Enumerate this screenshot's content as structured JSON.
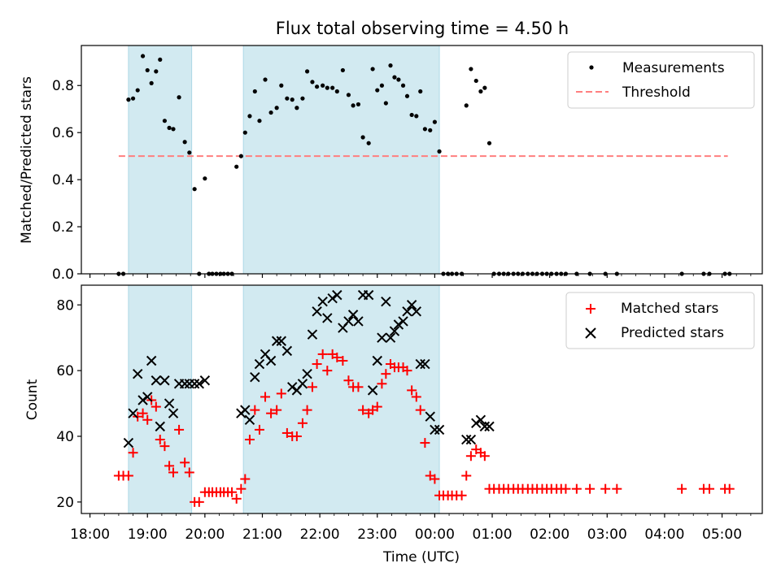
{
  "title": "Flux total observing time = 4.50 h",
  "xlabel": "Time (UTC)",
  "x_ticks": [
    "18:00",
    "19:00",
    "20:00",
    "21:00",
    "22:00",
    "23:00",
    "00:00",
    "01:00",
    "02:00",
    "03:00",
    "04:00",
    "05:00"
  ],
  "colors": {
    "shade": "#add8e6",
    "threshold": "#ff7f7f",
    "matched": "#ff0000",
    "predicted": "#000000",
    "measurement": "#000000"
  },
  "chart_data": [
    {
      "type": "scatter",
      "panel": "top",
      "ylabel": "Matched/Predicted stars",
      "xlim": [
        -0.15,
        11.7
      ],
      "ylim": [
        0,
        0.97
      ],
      "y_ticks": [
        "0.0",
        "0.2",
        "0.4",
        "0.6",
        "0.8"
      ],
      "x_unit": "hours since 18:00 UTC",
      "shaded_intervals": [
        [
          0.67,
          1.77
        ],
        [
          2.67,
          6.08
        ]
      ],
      "legend": [
        "Measurements",
        "Threshold"
      ],
      "legend_position": "top-right",
      "threshold": {
        "name": "Threshold",
        "y": 0.5,
        "x_range": [
          0.5,
          11.1
        ]
      },
      "series": [
        {
          "name": "Measurements",
          "x": [
            0.5,
            0.58,
            0.67,
            0.75,
            0.83,
            0.92,
            1.0,
            1.07,
            1.15,
            1.22,
            1.3,
            1.38,
            1.45,
            1.55,
            1.65,
            1.73,
            1.82,
            1.9,
            2.0,
            2.07,
            2.13,
            2.2,
            2.27,
            2.33,
            2.4,
            2.47,
            2.55,
            2.63,
            2.7,
            2.78,
            2.87,
            2.95,
            3.05,
            3.15,
            3.25,
            3.33,
            3.43,
            3.52,
            3.6,
            3.7,
            3.78,
            3.87,
            3.95,
            4.05,
            4.13,
            4.22,
            4.3,
            4.4,
            4.5,
            4.58,
            4.67,
            4.75,
            4.85,
            4.92,
            5.0,
            5.08,
            5.15,
            5.23,
            5.3,
            5.37,
            5.45,
            5.52,
            5.6,
            5.68,
            5.75,
            5.83,
            5.92,
            6.0,
            6.08,
            6.15,
            6.23,
            6.3,
            6.38,
            6.47,
            6.55,
            6.63,
            6.72,
            6.8,
            6.87,
            6.95,
            7.03,
            7.12,
            7.2,
            7.28,
            7.37,
            7.45,
            7.53,
            7.62,
            7.7,
            7.78,
            7.87,
            7.95,
            8.03,
            8.12,
            8.2,
            8.28,
            8.47,
            8.7,
            8.97,
            9.17,
            10.3,
            10.68,
            10.78,
            11.05,
            11.13
          ],
          "y": [
            0.0,
            0.0,
            0.74,
            0.745,
            0.78,
            0.925,
            0.865,
            0.81,
            0.86,
            0.91,
            0.65,
            0.62,
            0.615,
            0.75,
            0.56,
            0.515,
            0.36,
            0.0,
            0.405,
            0.0,
            0.0,
            0.0,
            0.0,
            0.0,
            0.0,
            0.0,
            0.455,
            0.5,
            0.6,
            0.67,
            0.775,
            0.65,
            0.825,
            0.685,
            0.705,
            0.8,
            0.745,
            0.74,
            0.705,
            0.745,
            0.86,
            0.815,
            0.795,
            0.8,
            0.79,
            0.79,
            0.775,
            0.865,
            0.76,
            0.715,
            0.72,
            0.58,
            0.555,
            0.87,
            0.78,
            0.8,
            0.725,
            0.885,
            0.835,
            0.825,
            0.8,
            0.755,
            0.675,
            0.67,
            0.775,
            0.615,
            0.61,
            0.645,
            0.52,
            0.0,
            0.0,
            0.0,
            0.0,
            0.0,
            0.715,
            0.87,
            0.82,
            0.775,
            0.79,
            0.555,
            0.0,
            0.0,
            0.0,
            0.0,
            0.0,
            0.0,
            0.0,
            0.0,
            0.0,
            0.0,
            0.0,
            0.0,
            0.0,
            0.0,
            0.0,
            0.0,
            0.0,
            0.0,
            0.0,
            0.0,
            0.0,
            0.0,
            0.0,
            0.0,
            0.0
          ]
        }
      ]
    },
    {
      "type": "scatter",
      "panel": "bottom",
      "ylabel": "Count",
      "xlabel": "Time (UTC)",
      "xlim": [
        -0.15,
        11.7
      ],
      "ylim": [
        16.5,
        86
      ],
      "y_ticks": [
        "20",
        "40",
        "60",
        "80"
      ],
      "x_unit": "hours since 18:00 UTC",
      "shaded_intervals": [
        [
          0.67,
          1.77
        ],
        [
          2.67,
          6.08
        ]
      ],
      "legend": [
        "Matched stars",
        "Predicted stars"
      ],
      "legend_position": "top-right",
      "series": [
        {
          "name": "Matched stars",
          "marker": "+",
          "x": [
            0.5,
            0.58,
            0.67,
            0.75,
            0.83,
            0.92,
            1.0,
            1.07,
            1.15,
            1.22,
            1.3,
            1.38,
            1.45,
            1.55,
            1.65,
            1.73,
            1.82,
            1.9,
            2.0,
            2.07,
            2.13,
            2.2,
            2.27,
            2.33,
            2.4,
            2.47,
            2.55,
            2.63,
            2.7,
            2.78,
            2.87,
            2.95,
            3.05,
            3.15,
            3.25,
            3.33,
            3.43,
            3.52,
            3.6,
            3.7,
            3.78,
            3.87,
            3.95,
            4.05,
            4.13,
            4.22,
            4.3,
            4.4,
            4.5,
            4.58,
            4.67,
            4.75,
            4.85,
            4.92,
            5.0,
            5.08,
            5.15,
            5.23,
            5.3,
            5.37,
            5.45,
            5.52,
            5.6,
            5.68,
            5.75,
            5.83,
            5.92,
            6.0,
            6.08,
            6.15,
            6.23,
            6.3,
            6.38,
            6.47,
            6.55,
            6.63,
            6.72,
            6.8,
            6.87,
            6.95,
            7.03,
            7.12,
            7.2,
            7.28,
            7.37,
            7.45,
            7.53,
            7.62,
            7.7,
            7.78,
            7.87,
            7.95,
            8.03,
            8.12,
            8.2,
            8.28,
            8.47,
            8.7,
            8.97,
            9.17,
            10.3,
            10.68,
            10.78,
            11.05,
            11.13
          ],
          "y": [
            28,
            28,
            28,
            35,
            46,
            47,
            45,
            51,
            49,
            39,
            37,
            31,
            29,
            42,
            32,
            29,
            20,
            20,
            23,
            23,
            23,
            23,
            23,
            23,
            23,
            23,
            21,
            24,
            27,
            39,
            48,
            42,
            52,
            47,
            48,
            53,
            41,
            40,
            40,
            44,
            48,
            55,
            62,
            65,
            60,
            65,
            64,
            63,
            57,
            55,
            55,
            48,
            47,
            48,
            49,
            56,
            59,
            62,
            61,
            61,
            61,
            60,
            54,
            52,
            48,
            38,
            28,
            27,
            22,
            22,
            22,
            22,
            22,
            22,
            28,
            34,
            36,
            35,
            34,
            24,
            24,
            24,
            24,
            24,
            24,
            24,
            24,
            24,
            24,
            24,
            24,
            24,
            24,
            24,
            24,
            24,
            24,
            24,
            24,
            24,
            24,
            24,
            24,
            24,
            24
          ]
        },
        {
          "name": "Predicted stars",
          "marker": "x",
          "x": [
            0.67,
            0.75,
            0.83,
            0.92,
            1.0,
            1.07,
            1.15,
            1.22,
            1.3,
            1.38,
            1.45,
            1.55,
            1.65,
            1.73,
            1.82,
            1.9,
            2.0,
            2.63,
            2.7,
            2.78,
            2.87,
            2.95,
            3.05,
            3.15,
            3.25,
            3.33,
            3.43,
            3.52,
            3.6,
            3.7,
            3.78,
            3.87,
            3.95,
            4.05,
            4.13,
            4.22,
            4.3,
            4.4,
            4.5,
            4.58,
            4.67,
            4.75,
            4.85,
            4.92,
            5.0,
            5.08,
            5.15,
            5.23,
            5.3,
            5.37,
            5.45,
            5.52,
            5.6,
            5.68,
            5.75,
            5.83,
            5.92,
            6.0,
            6.08,
            6.55,
            6.63,
            6.72,
            6.8,
            6.87,
            6.95
          ],
          "y": [
            38,
            47,
            59,
            51,
            52,
            63,
            57,
            43,
            57,
            50,
            47,
            56,
            56,
            56,
            56,
            56,
            57,
            47,
            48,
            45,
            58,
            62,
            65,
            63,
            69,
            69,
            66,
            55,
            54,
            56,
            59,
            71,
            78,
            81,
            76,
            82,
            83,
            73,
            75,
            77,
            75,
            83,
            83,
            54,
            63,
            70,
            81,
            70,
            72,
            74,
            75,
            78,
            80,
            78,
            62,
            62,
            46,
            42,
            42,
            39,
            39,
            44,
            45,
            43,
            43
          ]
        }
      ]
    }
  ]
}
